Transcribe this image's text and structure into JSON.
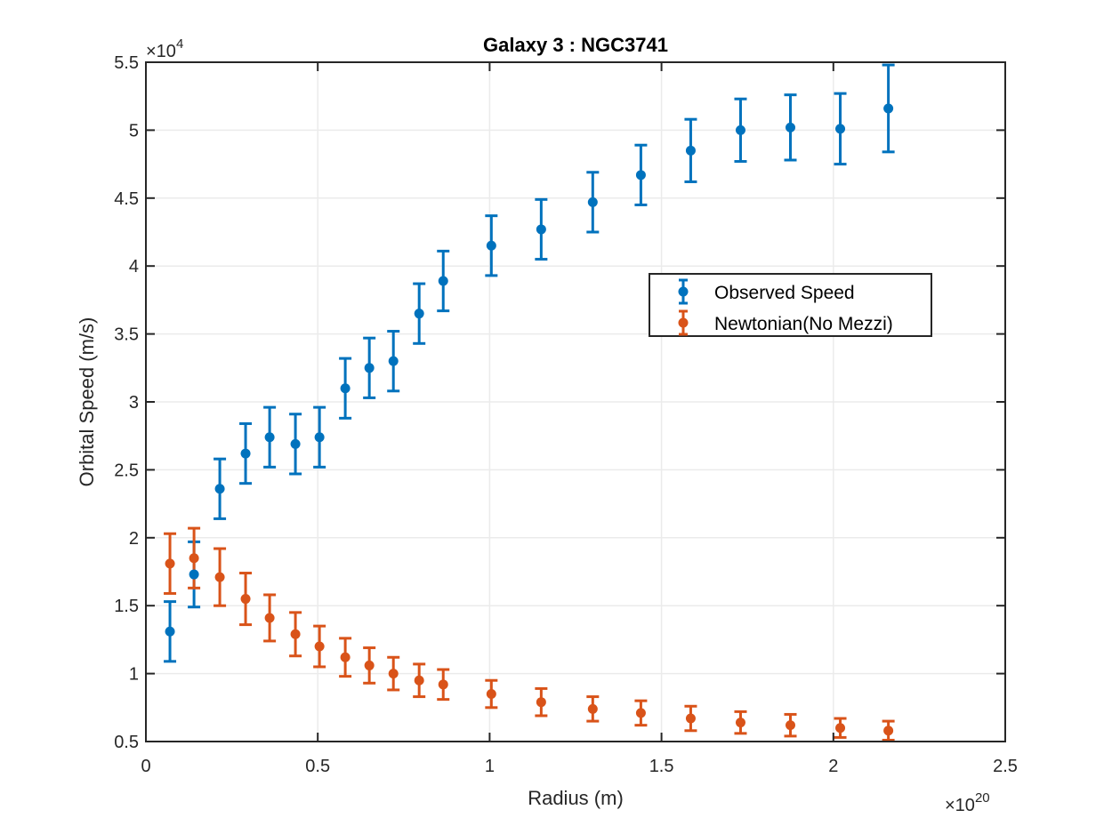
{
  "chart_data": {
    "type": "scatter",
    "title": "Galaxy 3 : NGC3741",
    "xlabel": "Radius (m)",
    "ylabel": "Orbital Speed (m/s)",
    "x_exponent": {
      "base": "×10",
      "power": "20"
    },
    "y_exponent": {
      "base": "×10",
      "power": "4"
    },
    "xlim": [
      0,
      2.5
    ],
    "ylim": [
      0.5,
      5.5
    ],
    "xticks": [
      "0",
      "0.5",
      "1",
      "1.5",
      "2",
      "2.5"
    ],
    "yticks": [
      "0.5",
      "1",
      "1.5",
      "2",
      "2.5",
      "3",
      "3.5",
      "4",
      "4.5",
      "5",
      "5.5"
    ],
    "grid": true,
    "legend_position": "center-right",
    "series": [
      {
        "name": "Observed Speed",
        "color": "#0072BD",
        "x": [
          0.07,
          0.14,
          0.215,
          0.29,
          0.36,
          0.435,
          0.505,
          0.58,
          0.65,
          0.72,
          0.795,
          0.865,
          1.005,
          1.15,
          1.3,
          1.44,
          1.585,
          1.73,
          1.875,
          2.02,
          2.16
        ],
        "y": [
          1.31,
          1.73,
          2.36,
          2.62,
          2.74,
          2.69,
          2.74,
          3.1,
          3.25,
          3.3,
          3.65,
          3.89,
          4.15,
          4.27,
          4.47,
          4.67,
          4.85,
          5.0,
          5.02,
          5.01,
          5.16
        ],
        "err": [
          0.22,
          0.24,
          0.22,
          0.22,
          0.22,
          0.22,
          0.22,
          0.22,
          0.22,
          0.22,
          0.22,
          0.22,
          0.22,
          0.22,
          0.22,
          0.22,
          0.23,
          0.23,
          0.24,
          0.26,
          0.32
        ]
      },
      {
        "name": "Newtonian(No Mezzi)",
        "color": "#D95319",
        "x": [
          0.07,
          0.14,
          0.215,
          0.29,
          0.36,
          0.435,
          0.505,
          0.58,
          0.65,
          0.72,
          0.795,
          0.865,
          1.005,
          1.15,
          1.3,
          1.44,
          1.585,
          1.73,
          1.875,
          2.02,
          2.16
        ],
        "y": [
          1.81,
          1.85,
          1.71,
          1.55,
          1.41,
          1.29,
          1.2,
          1.12,
          1.06,
          1.0,
          0.95,
          0.92,
          0.85,
          0.79,
          0.74,
          0.71,
          0.67,
          0.64,
          0.62,
          0.6,
          0.58
        ],
        "err": [
          0.22,
          0.22,
          0.21,
          0.19,
          0.17,
          0.16,
          0.15,
          0.14,
          0.13,
          0.12,
          0.12,
          0.11,
          0.1,
          0.1,
          0.09,
          0.09,
          0.09,
          0.08,
          0.08,
          0.07,
          0.07
        ]
      }
    ]
  }
}
